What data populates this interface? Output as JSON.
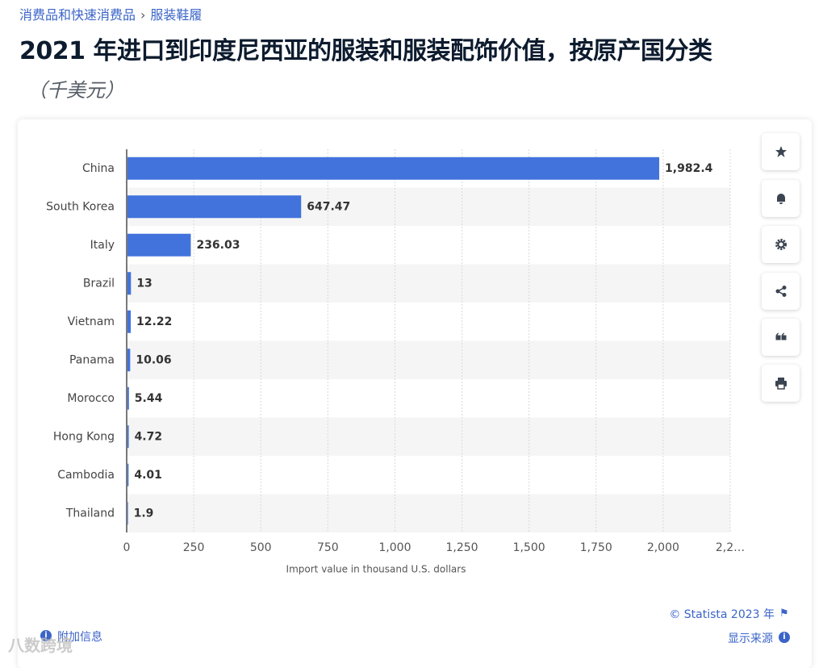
{
  "breadcrumb": [
    "消费品和快速消费品",
    "服装鞋履"
  ],
  "chart_data": {
    "type": "hbar",
    "title": "2021 年进口到印度尼西亚的服装和服装配饰价值，按原产国分类",
    "subtitle": "（千美元）",
    "x_label": "Import value in thousand U.S. dollars",
    "categories": [
      "China",
      "South Korea",
      "Italy",
      "Brazil",
      "Vietnam",
      "Panama",
      "Morocco",
      "Hong Kong",
      "Cambodia",
      "Thailand"
    ],
    "values": [
      1982.4,
      647.47,
      236.03,
      13,
      12.22,
      10.06,
      5.44,
      4.72,
      4.01,
      1.9
    ],
    "value_labels": [
      "1,982.4",
      "647.47",
      "236.03",
      "13",
      "12.22",
      "10.06",
      "5.44",
      "4.72",
      "4.01",
      "1.9"
    ],
    "color": "#4273dc",
    "xlim": [
      0,
      2250
    ],
    "xticks": [
      0,
      250,
      500,
      750,
      {
        "value": 1000,
        "label": "1,000"
      },
      {
        "value": 1250,
        "label": "1,250"
      },
      {
        "value": 1500,
        "label": "1,500"
      },
      {
        "value": 1750,
        "label": "1,750"
      },
      {
        "value": 2000,
        "label": "2,000"
      },
      {
        "value": 2250,
        "label": "2,2…"
      }
    ],
    "grid": true
  },
  "footer": {
    "copyright": "© Statista 2023 年",
    "source": "显示来源",
    "info": "附加信息"
  },
  "watermark": "八数跨境"
}
